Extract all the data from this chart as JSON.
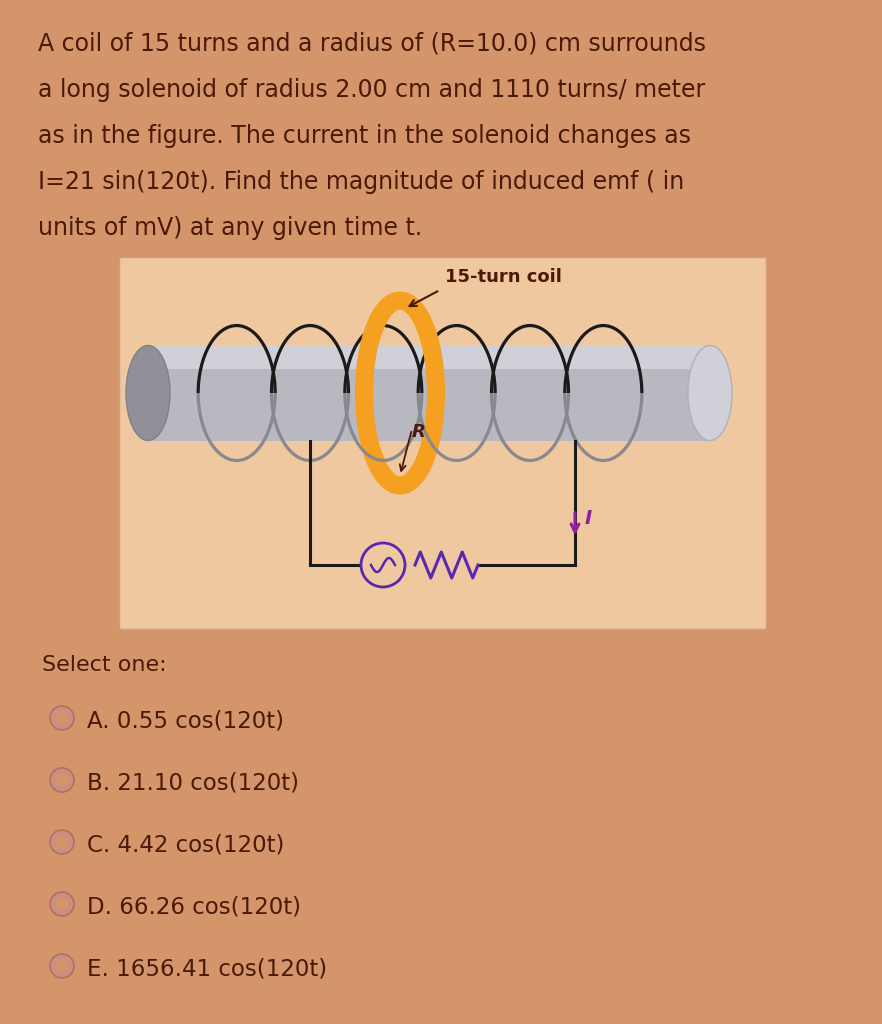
{
  "bg_color": "#d4956a",
  "panel_color": "#f0c8a0",
  "text_color": "#4a1a08",
  "question_text_lines": [
    "A coil of 15 turns and a radius of (R=10.0) cm surrounds",
    "a long solenoid of radius 2.00 cm and 1110 turns/ meter",
    "as in the figure. The current in the solenoid changes as",
    "I=21 sin(120t). Find the magnitude of induced emf ( in",
    "units of mV) at any given time t."
  ],
  "select_label": "Select one:",
  "options": [
    "A. 0.55 cos(120t)",
    "B. 21.10 cos(120t)",
    "C. 4.42 cos(120t)",
    "D. 66.26 cos(120t)",
    "E. 1656.41 cos(120t)"
  ],
  "coil_orange": "#f5a020",
  "wire_black": "#1a1a1a",
  "circuit_purple": "#5828b0",
  "arrow_purple": "#9020a0",
  "radio_fill": "#d4956a",
  "radio_edge": "#c08878",
  "cyl_body": "#b8b8c0",
  "cyl_left": "#909098",
  "cyl_right": "#d0d0d8",
  "label_15turn": "15-turn coil",
  "label_R": "R",
  "label_I": "I"
}
